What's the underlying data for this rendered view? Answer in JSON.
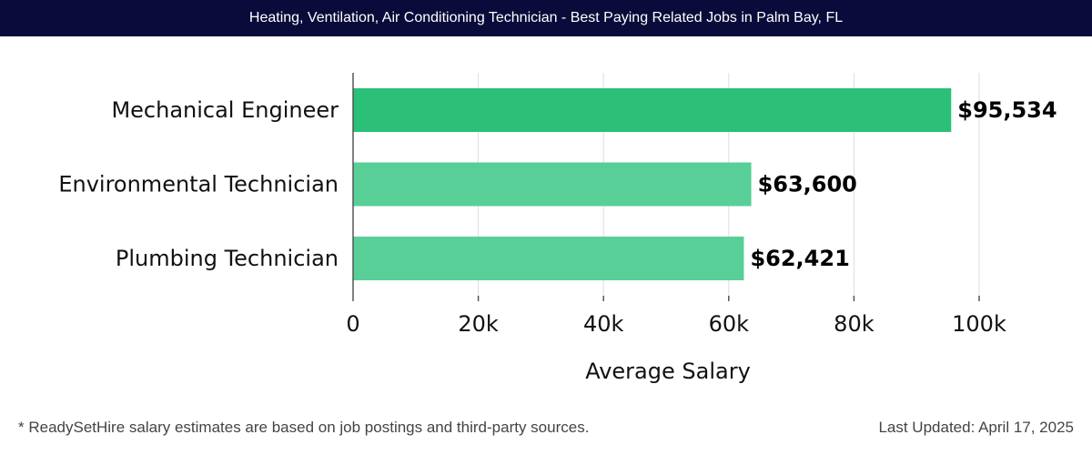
{
  "header": {
    "title": "Heating, Ventilation, Air Conditioning Technician - Best Paying Related Jobs in Palm Bay, FL"
  },
  "chart_data": {
    "type": "bar",
    "orientation": "horizontal",
    "categories": [
      "Mechanical Engineer",
      "Environmental Technician",
      "Plumbing Technician"
    ],
    "values": [
      95534,
      63600,
      62421
    ],
    "value_labels": [
      "$95,534",
      "$63,600",
      "$62,421"
    ],
    "xlabel": "Average Salary",
    "ylabel": "",
    "xlim": [
      0,
      100000
    ],
    "xticks": [
      0,
      20000,
      40000,
      60000,
      80000,
      100000
    ],
    "xtick_labels": [
      "0",
      "20k",
      "40k",
      "60k",
      "80k",
      "100k"
    ],
    "grid": true,
    "colors": [
      "#2bbf78",
      "#57cf97",
      "#57cf97"
    ]
  },
  "footer": {
    "note": "* ReadySetHire salary estimates are based on job postings and third-party sources.",
    "updated": "Last Updated: April 17, 2025"
  }
}
